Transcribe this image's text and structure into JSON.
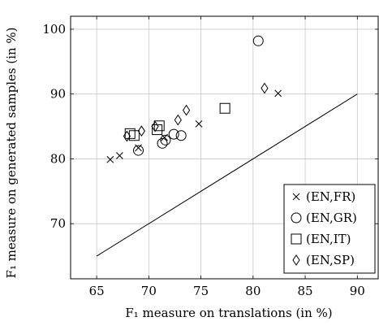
{
  "chart_data": {
    "type": "scatter",
    "title": "",
    "xlabel": "F₁ measure on translations (in %)",
    "ylabel": "F₁ measure on generated samples (in %)",
    "xlim": [
      62.5,
      92
    ],
    "ylim": [
      61.5,
      102
    ],
    "xticks": [
      65,
      70,
      75,
      80,
      85,
      90
    ],
    "yticks": [
      70,
      80,
      90,
      100
    ],
    "grid": true,
    "legend_position": "bottom-right",
    "reference_line": {
      "x": [
        65,
        90
      ],
      "y": [
        65,
        90
      ]
    },
    "series": [
      {
        "name": "(EN,FR)",
        "marker": "cross",
        "points": [
          {
            "x": 66.3,
            "y": 79.9
          },
          {
            "x": 67.2,
            "y": 80.5
          },
          {
            "x": 69.0,
            "y": 81.7
          },
          {
            "x": 71.5,
            "y": 83.3
          },
          {
            "x": 74.8,
            "y": 85.4
          },
          {
            "x": 82.4,
            "y": 90.1
          }
        ]
      },
      {
        "name": "(EN,GR)",
        "marker": "circle",
        "points": [
          {
            "x": 69.0,
            "y": 81.3
          },
          {
            "x": 71.3,
            "y": 82.4
          },
          {
            "x": 71.6,
            "y": 82.9
          },
          {
            "x": 72.4,
            "y": 83.8
          },
          {
            "x": 73.1,
            "y": 83.6
          },
          {
            "x": 80.5,
            "y": 98.2
          }
        ]
      },
      {
        "name": "(EN,IT)",
        "marker": "square",
        "points": [
          {
            "x": 68.2,
            "y": 83.9
          },
          {
            "x": 68.6,
            "y": 83.6
          },
          {
            "x": 70.8,
            "y": 84.5
          },
          {
            "x": 71.0,
            "y": 85.1
          },
          {
            "x": 77.3,
            "y": 87.8
          }
        ]
      },
      {
        "name": "(EN,SP)",
        "marker": "diamond",
        "points": [
          {
            "x": 67.9,
            "y": 83.5
          },
          {
            "x": 69.3,
            "y": 84.3
          },
          {
            "x": 70.6,
            "y": 85.0
          },
          {
            "x": 72.8,
            "y": 86.0
          },
          {
            "x": 73.6,
            "y": 87.5
          },
          {
            "x": 81.1,
            "y": 90.9
          }
        ]
      }
    ]
  }
}
